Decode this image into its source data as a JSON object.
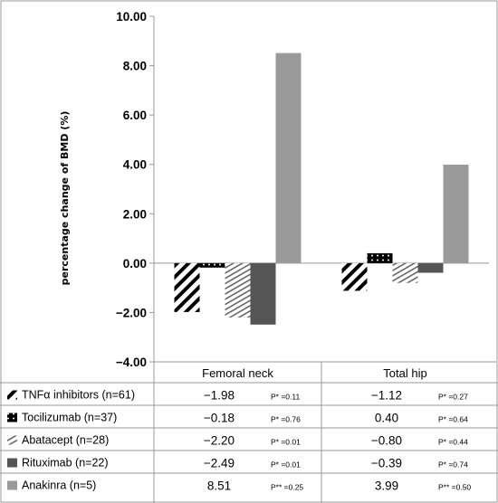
{
  "chart_data": {
    "type": "bar",
    "ylabel": "percentage change of BMD (%)",
    "ylim": [
      -4,
      10
    ],
    "yticks": [
      "−4.00",
      "−2.00",
      "0.00",
      "2.00",
      "4.00",
      "6.00",
      "8.00",
      "10.00"
    ],
    "categories": [
      "Femoral neck",
      "Total hip"
    ],
    "series": [
      {
        "name": "TNFα inhibitors (n=61)",
        "values": [
          -1.98,
          -1.12
        ],
        "labels": [
          "−1.98",
          "−1.12"
        ],
        "p": [
          "P* =0.11",
          "P* =0.27"
        ],
        "pattern": "diag-thick"
      },
      {
        "name": "Tocilizumab (n=37)",
        "values": [
          -0.18,
          0.4
        ],
        "labels": [
          "−0.18",
          "0.40"
        ],
        "p": [
          "P* =0.76",
          "P* =0.64"
        ],
        "pattern": "dots"
      },
      {
        "name": "Abatacept (n=28)",
        "values": [
          -2.2,
          -0.8
        ],
        "labels": [
          "−2.20",
          "−0.80"
        ],
        "p": [
          "P* =0.01",
          "P* =0.44"
        ],
        "pattern": "diag-thin"
      },
      {
        "name": "Rituximab (n=22)",
        "values": [
          -2.49,
          -0.39
        ],
        "labels": [
          "−2.49",
          "−0.39"
        ],
        "p": [
          "P* =0.01",
          "P* =0.74"
        ],
        "pattern": "solid-dark"
      },
      {
        "name": "Anakinra (n=5)",
        "values": [
          8.51,
          3.99
        ],
        "labels": [
          "8.51",
          "3.99"
        ],
        "p": [
          "P** =0.25",
          "P** =0.50"
        ],
        "pattern": "solid-light"
      }
    ],
    "grid": false,
    "legend": "data-table-bottom"
  },
  "colors": {
    "solid_dark": "#555555",
    "solid_light": "#9a9a9a",
    "frame": "#999999",
    "ink": "#000000"
  }
}
